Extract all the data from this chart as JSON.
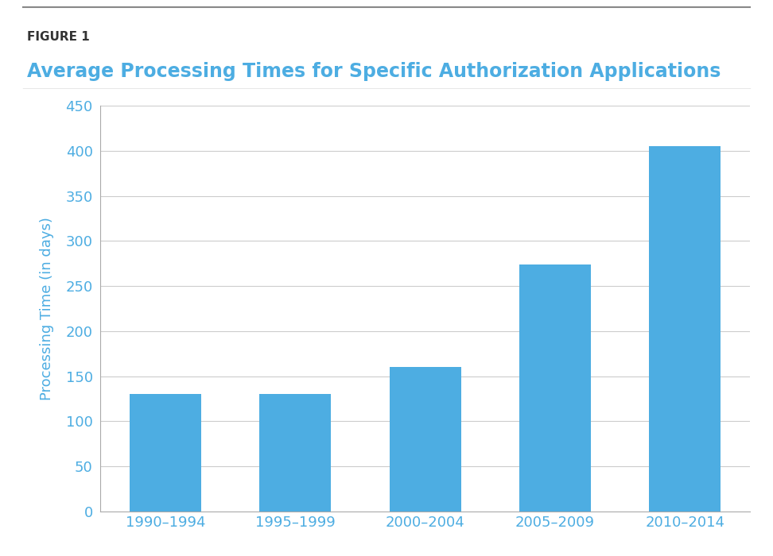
{
  "figure_label": "FIGURE 1",
  "title": "Average Processing Times for Specific Authorization Applications",
  "categories": [
    "1990–1994",
    "1995–1999",
    "2000–2004",
    "2005–2009",
    "2010–2014"
  ],
  "values": [
    130,
    130,
    160,
    274,
    405
  ],
  "bar_color": "#4DADE2",
  "ylabel": "Processing Time (in days)",
  "ylim": [
    0,
    450
  ],
  "yticks": [
    0,
    50,
    100,
    150,
    200,
    250,
    300,
    350,
    400,
    450
  ],
  "background_color": "#ffffff",
  "figure_label_color": "#333333",
  "title_color": "#4DADE2",
  "axis_color": "#aaaaaa",
  "grid_color": "#cccccc",
  "tick_label_color": "#4DADE2",
  "ylabel_color": "#4DADE2",
  "xlabel_color": "#4DADE2",
  "figure_label_fontsize": 11,
  "title_fontsize": 17,
  "tick_fontsize": 13,
  "ylabel_fontsize": 13
}
